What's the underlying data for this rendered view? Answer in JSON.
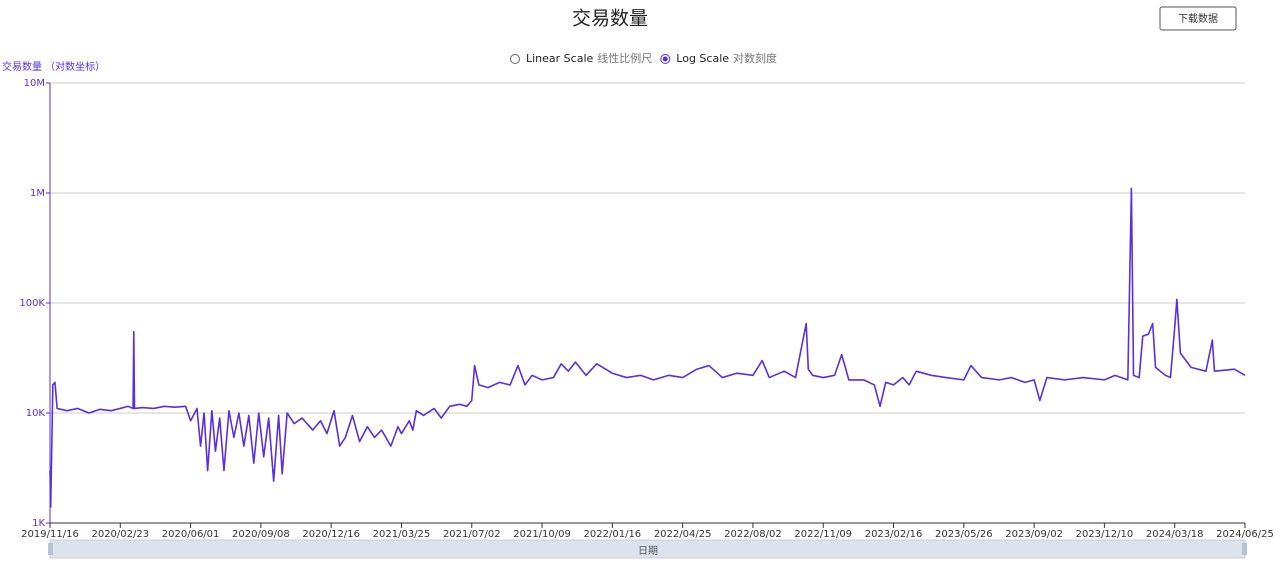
{
  "chart_data": {
    "type": "line",
    "title": "交易数量",
    "ylabel": "交易数量 （对数坐标）",
    "xlabel": "日期",
    "download_button": "下载数据",
    "scale_options": [
      {
        "label": "Linear Scale",
        "sub": "线性比例尺"
      },
      {
        "label": "Log Scale",
        "sub": "对数刻度"
      }
    ],
    "log_scale": true,
    "grid": true,
    "ylim": [
      1000,
      10000000
    ],
    "yticks": [
      {
        "value": 1000,
        "label": "1K"
      },
      {
        "value": 10000,
        "label": "10K"
      },
      {
        "value": 100000,
        "label": "100K"
      },
      {
        "value": 1000000,
        "label": "1M"
      },
      {
        "value": 10000000,
        "label": "10M"
      }
    ],
    "xlim": [
      "2019/11/16",
      "2024/06/25"
    ],
    "xticks": [
      "2019/11/16",
      "2020/02/23",
      "2020/06/01",
      "2020/09/08",
      "2020/12/16",
      "2021/03/25",
      "2021/07/02",
      "2021/10/09",
      "2022/01/16",
      "2022/04/25",
      "2022/08/02",
      "2022/11/09",
      "2023/02/16",
      "2023/05/26",
      "2023/09/02",
      "2023/12/10",
      "2024/03/18",
      "2024/06/25"
    ],
    "x": [
      "2019/11/16",
      "2019/11/17",
      "2019/11/20",
      "2019/11/23",
      "2019/11/26",
      "2019/12/10",
      "2019/12/25",
      "2020/01/10",
      "2020/01/25",
      "2020/02/10",
      "2020/02/23",
      "2020/03/05",
      "2020/03/12",
      "2020/03/13",
      "2020/03/14",
      "2020/03/25",
      "2020/04/10",
      "2020/04/25",
      "2020/05/10",
      "2020/05/25",
      "2020/06/01",
      "2020/06/10",
      "2020/06/15",
      "2020/06/20",
      "2020/06/25",
      "2020/07/01",
      "2020/07/06",
      "2020/07/12",
      "2020/07/18",
      "2020/07/25",
      "2020/08/01",
      "2020/08/08",
      "2020/08/15",
      "2020/08/22",
      "2020/08/29",
      "2020/09/05",
      "2020/09/12",
      "2020/09/19",
      "2020/09/26",
      "2020/10/03",
      "2020/10/08",
      "2020/10/15",
      "2020/10/25",
      "2020/11/05",
      "2020/11/20",
      "2020/12/01",
      "2020/12/10",
      "2020/12/20",
      "2020/12/28",
      "2021/01/05",
      "2021/01/15",
      "2021/01/25",
      "2021/02/05",
      "2021/02/15",
      "2021/02/25",
      "2021/03/10",
      "2021/03/20",
      "2021/03/25",
      "2021/04/05",
      "2021/04/10",
      "2021/04/15",
      "2021/04/25",
      "2021/05/10",
      "2021/05/20",
      "2021/06/01",
      "2021/06/15",
      "2021/06/25",
      "2021/07/02",
      "2021/07/06",
      "2021/07/12",
      "2021/07/25",
      "2021/08/10",
      "2021/08/25",
      "2021/09/05",
      "2021/09/15",
      "2021/09/25",
      "2021/10/09",
      "2021/10/25",
      "2021/11/05",
      "2021/11/15",
      "2021/11/25",
      "2021/12/10",
      "2021/12/25",
      "2022/01/16",
      "2022/02/05",
      "2022/02/25",
      "2022/03/15",
      "2022/04/05",
      "2022/04/25",
      "2022/05/15",
      "2022/06/01",
      "2022/06/20",
      "2022/07/10",
      "2022/08/02",
      "2022/08/15",
      "2022/08/25",
      "2022/09/15",
      "2022/10/01",
      "2022/10/16",
      "2022/10/19",
      "2022/10/25",
      "2022/11/09",
      "2022/11/25",
      "2022/12/05",
      "2022/12/15",
      "2023/01/05",
      "2023/01/20",
      "2023/01/28",
      "2023/02/05",
      "2023/02/16",
      "2023/03/01",
      "2023/03/10",
      "2023/03/20",
      "2023/04/10",
      "2023/05/01",
      "2023/05/26",
      "2023/06/05",
      "2023/06/20",
      "2023/07/15",
      "2023/08/01",
      "2023/08/20",
      "2023/09/02",
      "2023/09/10",
      "2023/09/20",
      "2023/10/15",
      "2023/11/10",
      "2023/12/10",
      "2023/12/25",
      "2024/01/12",
      "2024/01/17",
      "2024/01/20",
      "2024/01/28",
      "2024/02/02",
      "2024/02/10",
      "2024/02/16",
      "2024/02/20",
      "2024/03/05",
      "2024/03/12",
      "2024/03/18",
      "2024/03/21",
      "2024/03/26",
      "2024/04/10",
      "2024/05/01",
      "2024/05/10",
      "2024/05/13",
      "2024/06/10",
      "2024/06/25"
    ],
    "series": [
      {
        "name": "交易数量",
        "color": "#5a2fe0",
        "values": [
          3000,
          1400,
          18000,
          19000,
          11000,
          10500,
          11000,
          10000,
          10800,
          10500,
          11000,
          11500,
          11000,
          55000,
          11000,
          11200,
          11000,
          11500,
          11300,
          11500,
          8500,
          11000,
          5000,
          10000,
          3000,
          10500,
          4500,
          9000,
          3000,
          10500,
          6000,
          10000,
          5000,
          9500,
          3500,
          10000,
          4000,
          9000,
          2400,
          9500,
          2800,
          10000,
          8000,
          9000,
          7000,
          8500,
          6500,
          10500,
          5000,
          6000,
          9500,
          5500,
          7500,
          6000,
          7000,
          5000,
          7500,
          6500,
          8500,
          7000,
          10500,
          9500,
          11000,
          9000,
          11500,
          12000,
          11500,
          13000,
          27000,
          18000,
          17000,
          19000,
          18000,
          27000,
          18000,
          22000,
          20000,
          21000,
          28000,
          24000,
          29000,
          22000,
          28000,
          23000,
          21000,
          22000,
          20000,
          22000,
          21000,
          25000,
          27000,
          21000,
          23000,
          22000,
          30000,
          21000,
          24000,
          21000,
          65000,
          25000,
          22000,
          21000,
          22000,
          34000,
          20000,
          20000,
          18000,
          11500,
          19000,
          18000,
          21000,
          18000,
          24000,
          22000,
          21000,
          20000,
          27000,
          21000,
          20000,
          21000,
          19000,
          20000,
          13000,
          21000,
          20000,
          21000,
          20000,
          22000,
          20000,
          1100000,
          22000,
          21000,
          50000,
          52000,
          65000,
          26000,
          22000,
          21000,
          60000,
          108000,
          35000,
          26000,
          24000,
          46000,
          24000,
          25000,
          22000
        ]
      }
    ]
  }
}
